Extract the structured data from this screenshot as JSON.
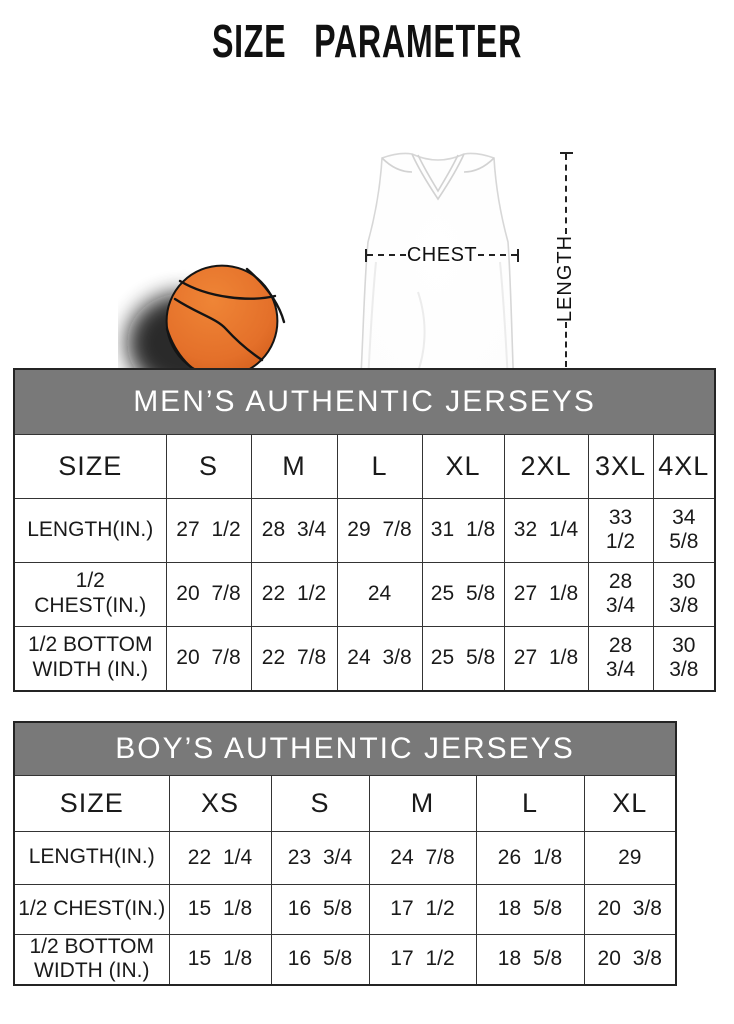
{
  "title": "SIZE  PARAMETER",
  "diagram": {
    "chest_label": "CHEST",
    "length_label": "LENGTH",
    "colors": {
      "basketball": "#e4702a",
      "basketball_seam": "#141414",
      "shadow": "#0d0d0d",
      "jersey": "#ffffff"
    }
  },
  "tables": [
    {
      "title": "MEN’S AUTHENTIC JERSEYS",
      "columns": [
        "SIZE",
        "S",
        "M",
        "L",
        "XL",
        "2XL",
        "3XL",
        "4XL"
      ],
      "rows": [
        {
          "label": "LENGTH(IN.)",
          "values": [
            "27 1/2",
            "28 3/4",
            "29 7/8",
            "31 1/8",
            "32 1/4",
            "33 1/2",
            "34 5/8"
          ]
        },
        {
          "label": "1/2 CHEST(IN.)",
          "values": [
            "20 7/8",
            "22 1/2",
            "24",
            "25 5/8",
            "27 1/8",
            "28 3/4",
            "30 3/8"
          ]
        },
        {
          "label": "1/2 BOTTOM WIDTH (IN.)",
          "values": [
            "20 7/8",
            "22 7/8",
            "24 3/8",
            "25 5/8",
            "27 1/8",
            "28 3/4",
            "30 3/8"
          ]
        }
      ]
    },
    {
      "title": "BOY’S AUTHENTIC JERSEYS",
      "columns": [
        "SIZE",
        "XS",
        "S",
        "M",
        "L",
        "XL"
      ],
      "rows": [
        {
          "label": "LENGTH(IN.)",
          "values": [
            "22 1/4",
            "23 3/4",
            "24 7/8",
            "26 1/8",
            "29"
          ]
        },
        {
          "label": "1/2 CHEST(IN.)",
          "values": [
            "15 1/8",
            "16 5/8",
            "17 1/2",
            "18 5/8",
            "20 3/8"
          ]
        },
        {
          "label": "1/2 BOTTOM WIDTH (IN.)",
          "values": [
            "15 1/8",
            "16 5/8",
            "17 1/2",
            "18 5/8",
            "20 3/8"
          ]
        }
      ]
    }
  ],
  "colors": {
    "banner_bg": "#797979",
    "banner_text": "#ffffff",
    "border": "#343434",
    "text": "#1a1a1a"
  }
}
